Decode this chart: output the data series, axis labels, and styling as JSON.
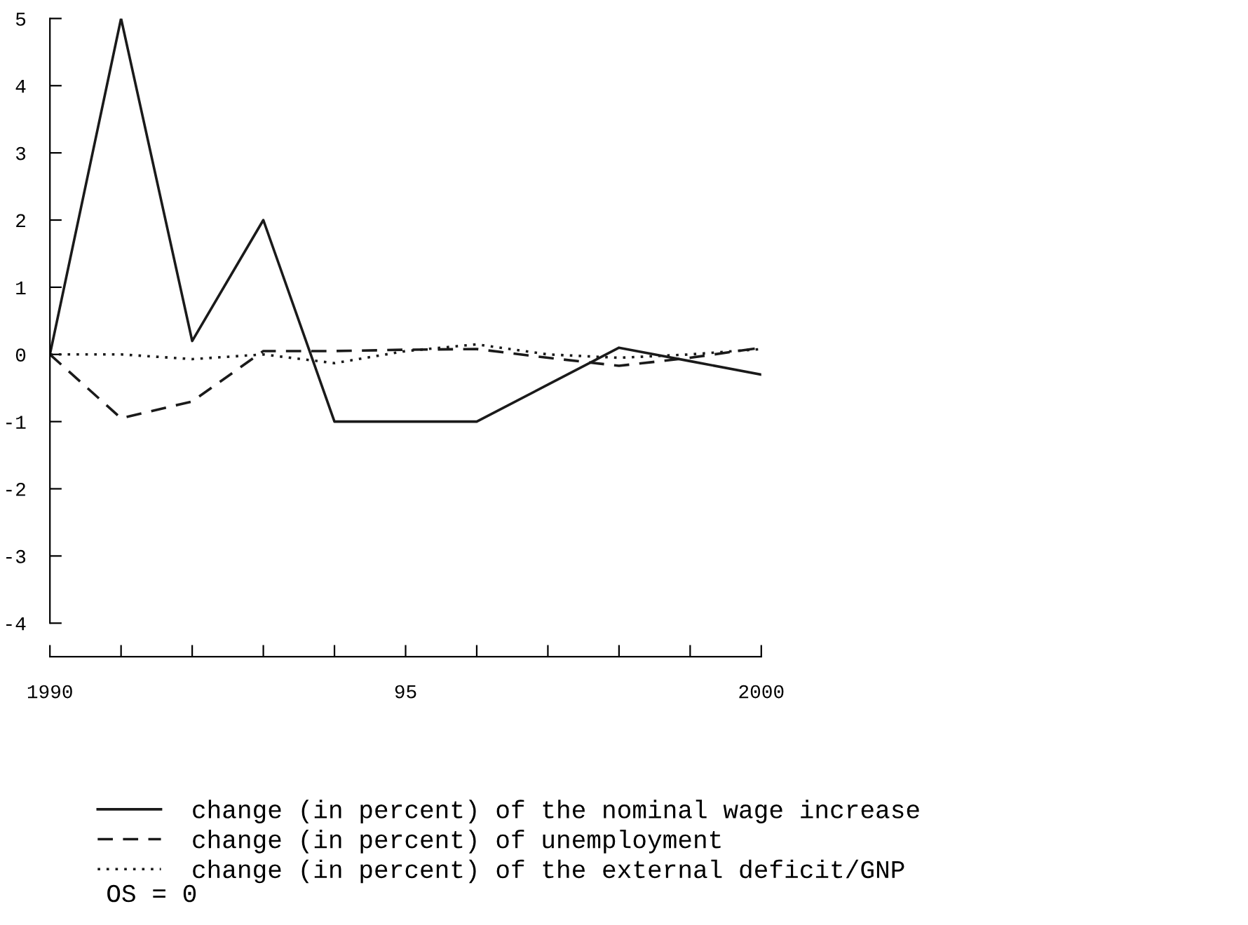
{
  "chart_data": {
    "type": "line",
    "x": [
      1990,
      1991,
      1992,
      1993,
      1994,
      1995,
      1996,
      1997,
      1998,
      1999,
      2000
    ],
    "series": [
      {
        "name": "change (in percent) of the nominal wage increase",
        "color": "#1a1a1a",
        "line_style": "solid",
        "values": [
          0,
          5,
          0.2,
          2,
          -1,
          -1,
          -1,
          -0.45,
          0.1,
          -0.1,
          -0.3
        ]
      },
      {
        "name": "change (in percent) of unemployment",
        "color": "#1a1a1a",
        "line_style": "dashed",
        "values": [
          0,
          -0.95,
          -0.7,
          0.05,
          0.05,
          0.07,
          0.08,
          -0.05,
          -0.17,
          -0.05,
          0.1
        ]
      },
      {
        "name": "change (in percent) of the external deficit/GNP",
        "color": "#1a1a1a",
        "line_style": "dotted",
        "values": [
          0,
          0,
          -0.07,
          0,
          -0.13,
          0.05,
          0.15,
          0.0,
          -0.05,
          0,
          0.08
        ]
      }
    ],
    "xlim": [
      1990,
      2000
    ],
    "xticks": [
      1990,
      {
        "value": 1991,
        "label": null
      },
      {
        "value": 1992,
        "label": null
      },
      {
        "value": 1993,
        "label": null
      },
      {
        "value": 1994,
        "label": null
      },
      {
        "value": 1995,
        "label": "95"
      },
      {
        "value": 1996,
        "label": null
      },
      {
        "value": 1997,
        "label": null
      },
      {
        "value": 1998,
        "label": null
      },
      {
        "value": 1999,
        "label": null
      },
      2000
    ],
    "ylim": [
      -4.5,
      5
    ],
    "yticks": [
      -4,
      -3,
      -2,
      -1,
      0,
      1,
      2,
      3,
      4,
      5
    ],
    "grid": false,
    "legend": "bottom",
    "marker": "none",
    "annotations": [
      "OS = 0"
    ]
  }
}
